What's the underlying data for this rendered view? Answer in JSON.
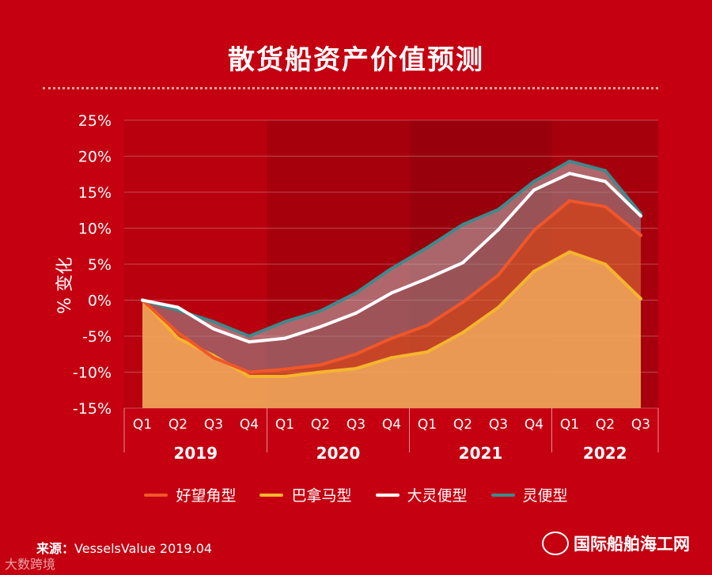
{
  "title": "散货船资产价值预测",
  "source_label": "来源：",
  "source_text": "VesselsValue 2019.04",
  "watermark_right": "国际船舶海工网",
  "watermark_left": "大数跨境",
  "colors": {
    "background": "#c40011",
    "capesize": "#f0562a",
    "panamax": "#f5b52e",
    "supramax": "#ffffff",
    "handysize": "#3d8a8d",
    "area_fill": "#f0a65a"
  },
  "chart_data": {
    "type": "line",
    "title": "散货船资产价值预测",
    "ylabel": "% 变化",
    "xlabel": "",
    "ylim": [
      -15,
      25
    ],
    "yticks": [
      25,
      20,
      15,
      10,
      5,
      0,
      -5,
      -10,
      -15
    ],
    "ytick_labels": [
      "25%",
      "20%",
      "15%",
      "10%",
      "5%",
      "0%",
      "-5%",
      "-10%",
      "-15%"
    ],
    "categories": [
      "Q1",
      "Q2",
      "Q3",
      "Q4",
      "Q1",
      "Q2",
      "Q3",
      "Q4",
      "Q1",
      "Q2",
      "Q3",
      "Q4",
      "Q1",
      "Q2",
      "Q3"
    ],
    "years": [
      {
        "label": "2019",
        "start": 0,
        "end": 3
      },
      {
        "label": "2020",
        "start": 4,
        "end": 7
      },
      {
        "label": "2021",
        "start": 8,
        "end": 11
      },
      {
        "label": "2022",
        "start": 12,
        "end": 14
      }
    ],
    "grid": true,
    "legend_position": "bottom",
    "series": [
      {
        "name": "好望角型",
        "key": "capesize",
        "values": [
          0,
          -4.5,
          -8,
          -10,
          -9.6,
          -9,
          -7.5,
          -5.3,
          -3.5,
          -0.3,
          3.5,
          9.7,
          13.8,
          13,
          9
        ]
      },
      {
        "name": "巴拿马型",
        "key": "panamax",
        "values": [
          0,
          -5.3,
          -7.7,
          -10.6,
          -10.6,
          -10,
          -9.5,
          -8,
          -7.2,
          -4.5,
          -1,
          4,
          6.7,
          5,
          0.2
        ]
      },
      {
        "name": "大灵便型",
        "key": "supramax",
        "values": [
          0,
          -1,
          -4,
          -5.8,
          -5.3,
          -3.7,
          -1.8,
          1,
          3,
          5.2,
          9.8,
          15.3,
          17.6,
          16.5,
          11.7
        ]
      },
      {
        "name": "灵便型",
        "key": "handysize",
        "values": [
          0,
          -1.4,
          -3,
          -5,
          -3,
          -1.5,
          1,
          4.4,
          7.3,
          10.5,
          12.6,
          16.5,
          19.3,
          18,
          12
        ]
      }
    ]
  }
}
